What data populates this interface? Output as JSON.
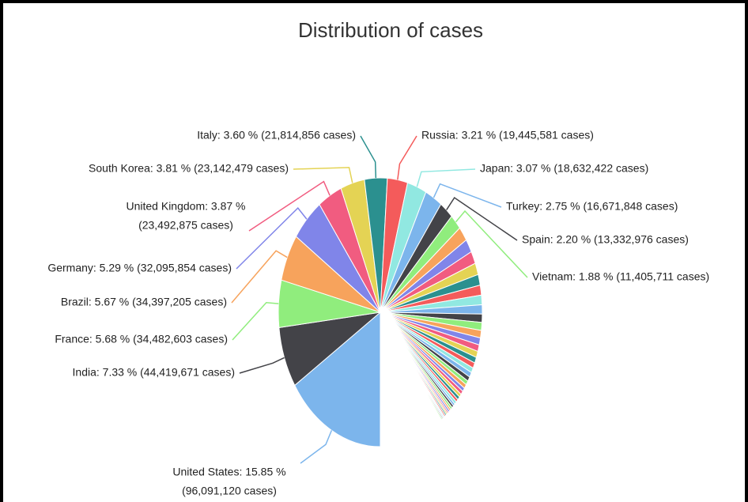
{
  "chart_data": {
    "type": "pie",
    "title": "Distribution of cases",
    "values": [
      15.85,
      7.33,
      5.68,
      5.67,
      5.29,
      3.87,
      3.81,
      3.6,
      3.21,
      3.07,
      2.75,
      2.2,
      1.88,
      1.75,
      1.6,
      1.5,
      1.4,
      1.3,
      1.2,
      1.15,
      1.1,
      1.0,
      0.95,
      0.9,
      0.85,
      0.8,
      0.75,
      0.7,
      0.65,
      0.6,
      0.6,
      0.55,
      0.5,
      0.5,
      0.45,
      0.45,
      0.4,
      0.4,
      0.35,
      0.35,
      0.3,
      0.3,
      0.3,
      0.25,
      0.25,
      0.2,
      0.2,
      0.2,
      0.2,
      0.15,
      0.15,
      0.15,
      0.15
    ],
    "value_labels": [
      [
        "United States: 15.85 %",
        "(96,091,120 cases)"
      ],
      "India: 7.33 % (44,419,671 cases)",
      "France: 5.68 % (34,482,603 cases)",
      "Brazil: 5.67 % (34,397,205 cases)",
      "Germany: 5.29 % (32,095,854 cases)",
      [
        "United Kingdom: 3.87 %",
        "(23,492,875 cases)"
      ],
      "South Korea: 3.81 % (23,142,479 cases)",
      "Italy: 3.60 % (21,814,856 cases)",
      "Russia: 3.21 % (19,445,581 cases)",
      "Japan: 3.07 % (18,632,422 cases)",
      "Turkey: 2.75 % (16,671,848 cases)",
      "Spain: 2.20 % (13,332,976 cases)",
      "Vietnam: 1.88 % (11,405,711 cases)",
      null,
      null,
      null,
      null,
      null,
      null,
      null,
      null,
      null,
      null,
      null,
      null,
      null,
      null,
      null,
      null,
      null,
      null,
      null,
      null,
      null,
      null,
      null,
      null,
      null,
      null,
      null,
      null,
      null,
      null,
      null,
      null,
      null,
      null,
      null,
      null,
      null,
      null,
      null,
      null
    ],
    "colors": [
      "#7cb5ec",
      "#434348",
      "#90ed7d",
      "#f7a35c",
      "#8085e9",
      "#f15c80",
      "#e4d354",
      "#2b908f",
      "#f45b5b",
      "#91e8e1"
    ]
  }
}
